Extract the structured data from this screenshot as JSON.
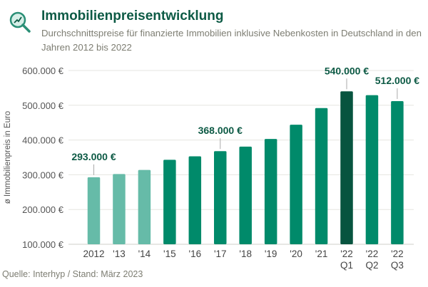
{
  "header": {
    "title": "Immobilienpreisentwicklung",
    "subtitle": "Durchschnittspreise für finanzierte Immobilien inklusive Nebenkosten in Deutschland in den Jahren 2012 bis 2022",
    "icon": "magnifier-trend-icon"
  },
  "footer": {
    "source": "Quelle: Interhyp  /  Stand: März 2023"
  },
  "colors": {
    "light": "#66bba8",
    "mid": "#008a6a",
    "dark": "#07543f",
    "text": "#0d5a45"
  },
  "chart_data": {
    "type": "bar",
    "ylabel": "ø Immobilienpreis in Euro",
    "ylim": [
      100000,
      600000
    ],
    "yticks": [
      {
        "v": 100000,
        "label": "100.000 €"
      },
      {
        "v": 200000,
        "label": "200.000 €"
      },
      {
        "v": 300000,
        "label": "300.000 €"
      },
      {
        "v": 400000,
        "label": "400.000 €"
      },
      {
        "v": 500000,
        "label": "500.000 €"
      },
      {
        "v": 600000,
        "label": "600.000 €"
      }
    ],
    "grid": true,
    "categories": [
      [
        "2012"
      ],
      [
        "'13"
      ],
      [
        "'14"
      ],
      [
        "'15"
      ],
      [
        "'16"
      ],
      [
        "'17"
      ],
      [
        "'18"
      ],
      [
        "'19"
      ],
      [
        "'20"
      ],
      [
        "'21"
      ],
      [
        "'22",
        "Q1"
      ],
      [
        "'22",
        "Q2"
      ],
      [
        "'22",
        "Q3"
      ]
    ],
    "values": [
      293000,
      302000,
      314000,
      343000,
      353000,
      368000,
      381000,
      403000,
      444000,
      492000,
      540000,
      529000,
      512000
    ],
    "shades": [
      "light",
      "light",
      "light",
      "mid",
      "mid",
      "mid",
      "mid",
      "mid",
      "mid",
      "mid",
      "dark",
      "mid",
      "mid"
    ],
    "annotations": [
      {
        "index": 0,
        "label": "293.000 €"
      },
      {
        "index": 5,
        "label": "368.000 €"
      },
      {
        "index": 10,
        "label": "540.000 €"
      },
      {
        "index": 12,
        "label": "512.000 €"
      }
    ]
  }
}
